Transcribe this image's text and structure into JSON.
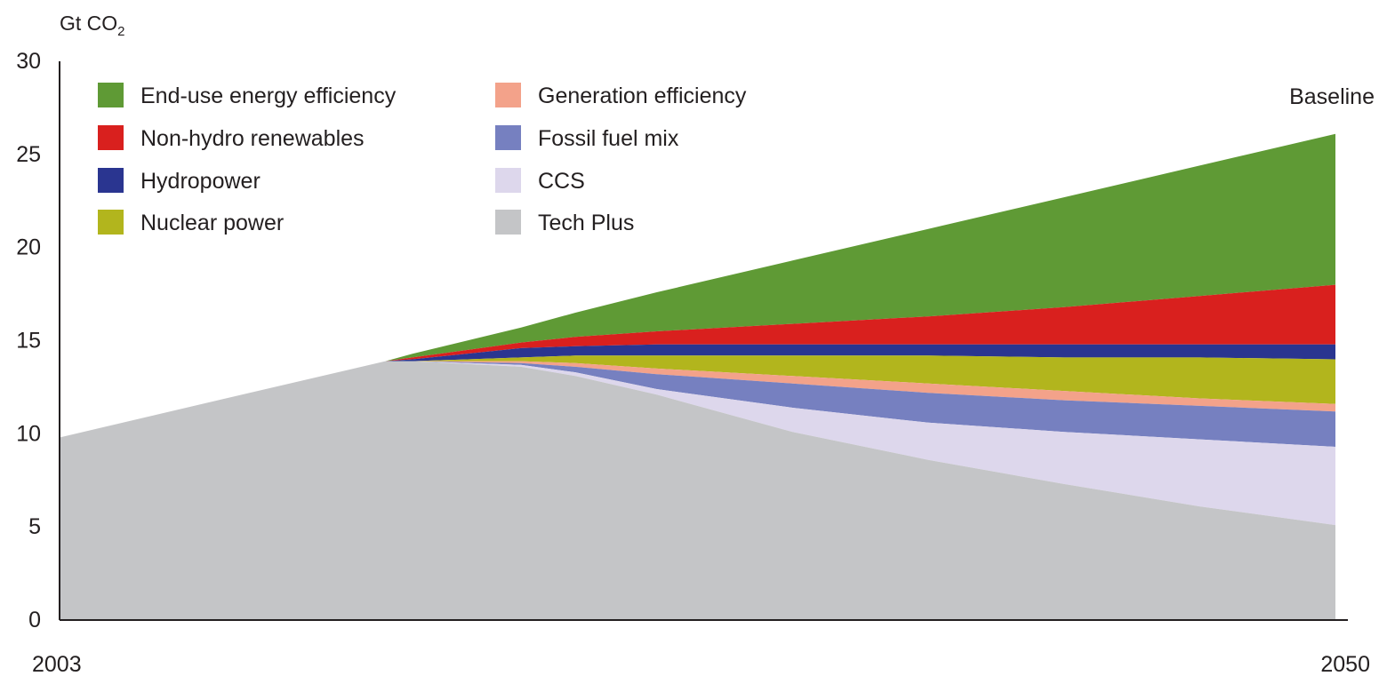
{
  "chart_data": {
    "type": "area",
    "ylabel": "Gt CO2",
    "ylabel_main": "Gt CO",
    "ylabel_sub": "2",
    "ylim": [
      0,
      30
    ],
    "yticks": [
      0,
      5,
      10,
      15,
      20,
      25,
      30
    ],
    "xticks": [
      "2003",
      "2050"
    ],
    "xlim": [
      2003,
      2050
    ],
    "grid": false,
    "legend_position": "top-left",
    "annotations": [
      {
        "text": "Baseline",
        "x": 2050,
        "y": 27.9
      }
    ],
    "x": [
      2003,
      2010,
      2015,
      2016,
      2020,
      2022,
      2025,
      2030,
      2035,
      2040,
      2045,
      2050
    ],
    "series": [
      {
        "name": "End-use energy efficiency",
        "color": "#5f9a35",
        "values": [
          9.8,
          12.2,
          13.9,
          14.3,
          15.7,
          16.5,
          17.6,
          19.3,
          21.0,
          22.7,
          24.4,
          26.1
        ]
      },
      {
        "name": "Non-hydro renewables",
        "color": "#d9201e",
        "values": [
          9.8,
          12.2,
          13.9,
          14.1,
          14.9,
          15.2,
          15.5,
          15.9,
          16.3,
          16.8,
          17.4,
          18.0
        ]
      },
      {
        "name": "Hydropower",
        "color": "#2a3590",
        "values": [
          9.8,
          12.2,
          13.9,
          14.0,
          14.6,
          14.7,
          14.8,
          14.8,
          14.8,
          14.8,
          14.8,
          14.8
        ]
      },
      {
        "name": "Nuclear power",
        "color": "#b2b51d",
        "values": [
          9.8,
          12.2,
          13.9,
          13.9,
          14.1,
          14.2,
          14.2,
          14.2,
          14.2,
          14.1,
          14.1,
          14.0
        ]
      },
      {
        "name": "Generation efficiency",
        "color": "#f3a28a",
        "values": [
          9.8,
          12.2,
          13.9,
          13.9,
          13.9,
          13.8,
          13.5,
          13.1,
          12.7,
          12.3,
          11.9,
          11.6
        ]
      },
      {
        "name": "Fossil fuel mix",
        "color": "#7680c0",
        "values": [
          9.8,
          12.2,
          13.9,
          13.9,
          13.8,
          13.6,
          13.2,
          12.7,
          12.2,
          11.8,
          11.5,
          11.2
        ]
      },
      {
        "name": "CCS",
        "color": "#ddd7ec",
        "values": [
          9.8,
          12.2,
          13.9,
          13.9,
          13.7,
          13.3,
          12.4,
          11.4,
          10.6,
          10.1,
          9.7,
          9.3
        ]
      },
      {
        "name": "Tech Plus",
        "color": "#c4c5c7",
        "values": [
          9.8,
          12.2,
          13.9,
          13.9,
          13.6,
          13.1,
          12.1,
          10.1,
          8.6,
          7.3,
          6.1,
          5.1
        ]
      }
    ],
    "legend": [
      {
        "name": "End-use energy efficiency",
        "color": "#5f9a35"
      },
      {
        "name": "Non-hydro renewables",
        "color": "#d9201e"
      },
      {
        "name": "Hydropower",
        "color": "#2a3590"
      },
      {
        "name": "Nuclear power",
        "color": "#b2b51d"
      },
      {
        "name": "Generation efficiency",
        "color": "#f3a28a"
      },
      {
        "name": "Fossil fuel mix",
        "color": "#7680c0"
      },
      {
        "name": "CCS",
        "color": "#ddd7ec"
      },
      {
        "name": "Tech Plus",
        "color": "#c4c5c7"
      }
    ]
  }
}
